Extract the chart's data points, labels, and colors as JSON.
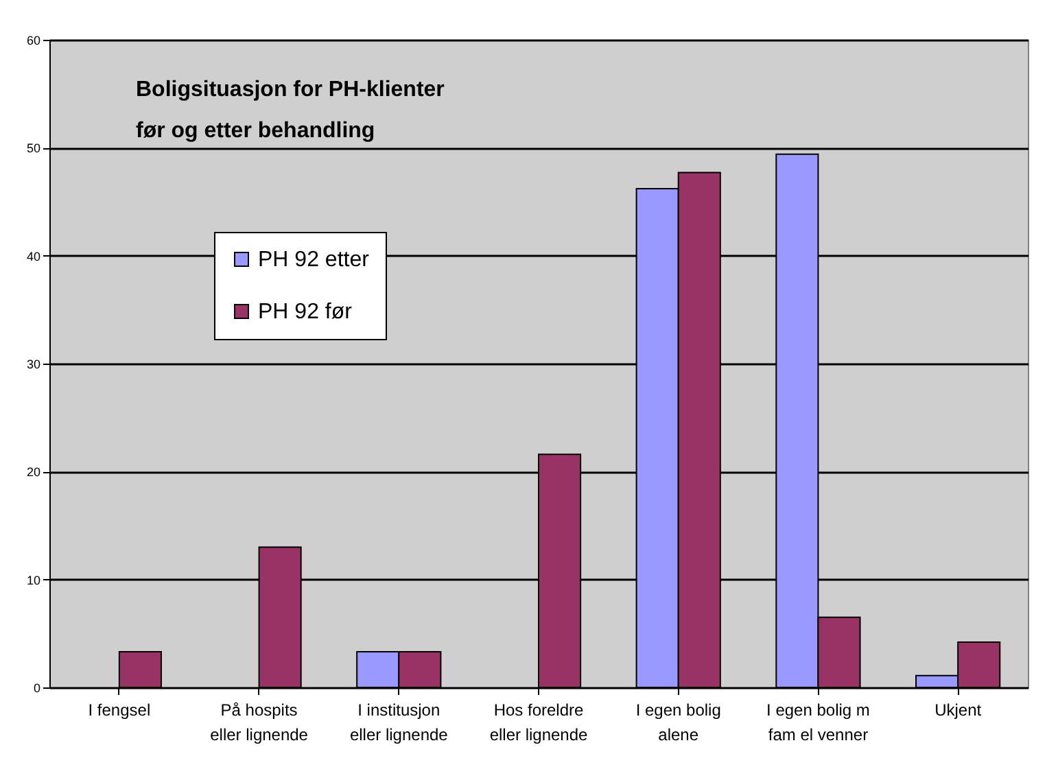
{
  "chart_data": {
    "type": "bar",
    "title": [
      "Boligsituasjon for PH-klienter",
      "før og etter behandling"
    ],
    "categories": [
      "I fengsel",
      "På hospits\neller lignende",
      "I institusjon\neller lignende",
      "Hos foreldre\neller lignende",
      "I egen bolig\nalene",
      "I egen bolig m\nfam el venner",
      "Ukjent"
    ],
    "series": [
      {
        "name": "PH 92 etter",
        "color": "#9999ff",
        "values": [
          null,
          null,
          3.3,
          null,
          46.2,
          49.4,
          1.1
        ]
      },
      {
        "name": "PH 92 før",
        "color": "#993366",
        "values": [
          3.3,
          13.0,
          3.3,
          21.6,
          47.7,
          6.5,
          4.2
        ]
      }
    ],
    "ylim": [
      0,
      60
    ],
    "yticks": [
      0,
      10,
      20,
      30,
      40,
      50,
      60
    ],
    "grid": "y",
    "legend": "left"
  }
}
